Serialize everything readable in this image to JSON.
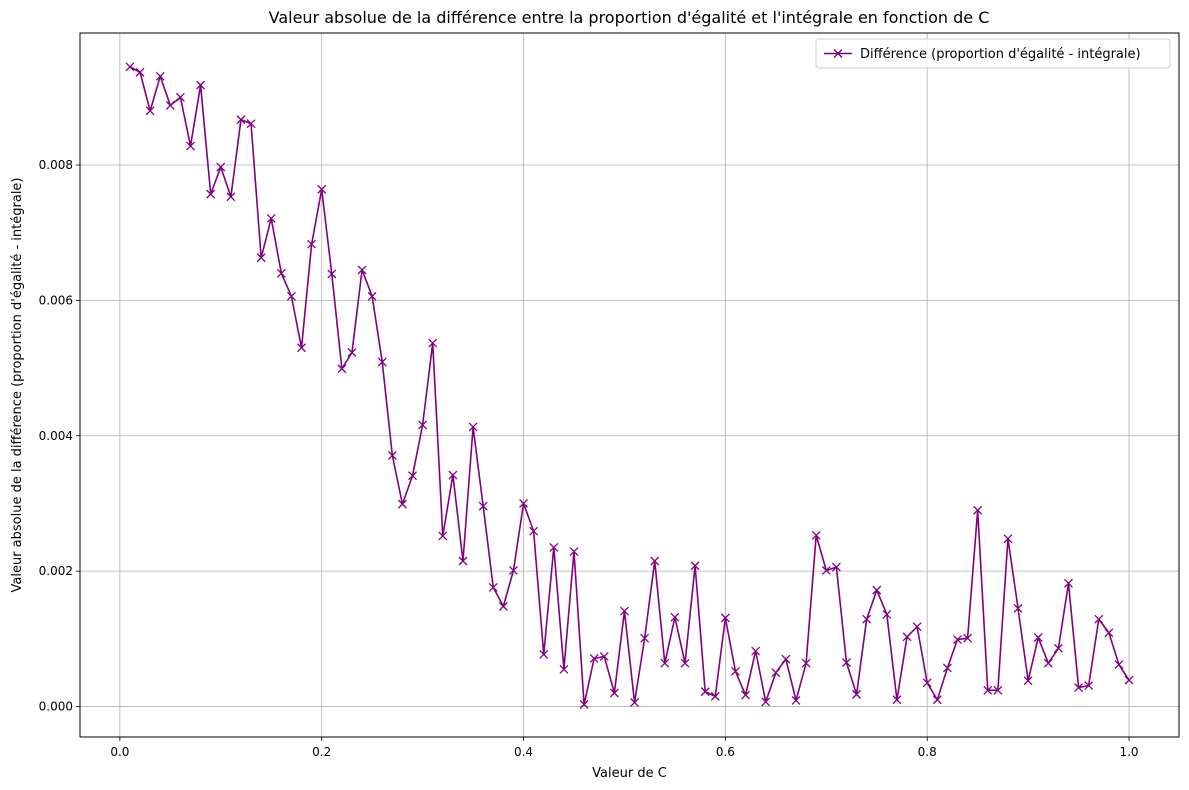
{
  "chart_data": {
    "type": "line",
    "title": "Valeur absolue de la différence entre la proportion d'égalité et l'intégrale en fonction de C",
    "xlabel": "Valeur de C",
    "ylabel": "Valeur absolue de la différence (proportion d'égalité - intégrale)",
    "xlim": [
      -0.0395,
      1.0495
    ],
    "ylim": [
      -0.00045,
      0.00995
    ],
    "x_ticks": [
      0.0,
      0.2,
      0.4,
      0.6,
      0.8,
      1.0
    ],
    "x_tick_labels": [
      "0.0",
      "0.2",
      "0.4",
      "0.6",
      "0.8",
      "1.0"
    ],
    "y_ticks": [
      0.0,
      0.002,
      0.004,
      0.006,
      0.008
    ],
    "y_tick_labels": [
      "0.000",
      "0.002",
      "0.004",
      "0.006",
      "0.008"
    ],
    "grid": true,
    "legend_position": "top-right",
    "series": [
      {
        "name": "Différence (proportion d'égalité - intégrale)",
        "color": "#800080",
        "marker": "x",
        "x": [
          0.01,
          0.02,
          0.03,
          0.04,
          0.05,
          0.06,
          0.07,
          0.08,
          0.09,
          0.1,
          0.11,
          0.12,
          0.13,
          0.14,
          0.15,
          0.16,
          0.17,
          0.18,
          0.19,
          0.2,
          0.21,
          0.22,
          0.23,
          0.24,
          0.25,
          0.26,
          0.27,
          0.28,
          0.29,
          0.3,
          0.31,
          0.32,
          0.33,
          0.34,
          0.35,
          0.36,
          0.37,
          0.38,
          0.39,
          0.4,
          0.41,
          0.42,
          0.43,
          0.44,
          0.45,
          0.46,
          0.47,
          0.48,
          0.49,
          0.5,
          0.51,
          0.52,
          0.53,
          0.54,
          0.55,
          0.56,
          0.57,
          0.58,
          0.59,
          0.6,
          0.61,
          0.62,
          0.63,
          0.64,
          0.65,
          0.66,
          0.67,
          0.68,
          0.69,
          0.7,
          0.71,
          0.72,
          0.73,
          0.74,
          0.75,
          0.76,
          0.77,
          0.78,
          0.79,
          0.8,
          0.81,
          0.82,
          0.83,
          0.84,
          0.85,
          0.86,
          0.87,
          0.88,
          0.89,
          0.9,
          0.91,
          0.92,
          0.93,
          0.94,
          0.95,
          0.96,
          0.97,
          0.98,
          0.99,
          1.0
        ],
        "y": [
          0.00945,
          0.00937,
          0.0088,
          0.00931,
          0.00888,
          0.009,
          0.00828,
          0.00918,
          0.00757,
          0.00797,
          0.00753,
          0.00867,
          0.00861,
          0.00663,
          0.00721,
          0.0064,
          0.00606,
          0.0053,
          0.00683,
          0.00764,
          0.00639,
          0.00499,
          0.00523,
          0.00645,
          0.00606,
          0.00509,
          0.00371,
          0.00299,
          0.00341,
          0.00416,
          0.00537,
          0.00252,
          0.00342,
          0.00215,
          0.00413,
          0.00296,
          0.00176,
          0.00148,
          0.00201,
          0.003,
          0.00259,
          0.00077,
          0.00235,
          0.00055,
          0.00229,
          3e-05,
          0.00071,
          0.00074,
          0.0002,
          0.00141,
          6e-05,
          0.00101,
          0.00215,
          0.00064,
          0.00132,
          0.00064,
          0.00208,
          0.00022,
          0.00015,
          0.00131,
          0.00052,
          0.00017,
          0.00082,
          7e-05,
          0.0005,
          0.0007,
          9e-05,
          0.00064,
          0.00253,
          0.00201,
          0.00206,
          0.00065,
          0.00018,
          0.00129,
          0.00172,
          0.00136,
          0.0001,
          0.00103,
          0.00118,
          0.00035,
          0.0001,
          0.00057,
          0.00099,
          0.00101,
          0.0029,
          0.00024,
          0.00024,
          0.00248,
          0.00145,
          0.00038,
          0.00102,
          0.00064,
          0.00086,
          0.00182,
          0.00028,
          0.00031,
          0.00129,
          0.00109,
          0.00062,
          0.00039
        ]
      }
    ]
  }
}
